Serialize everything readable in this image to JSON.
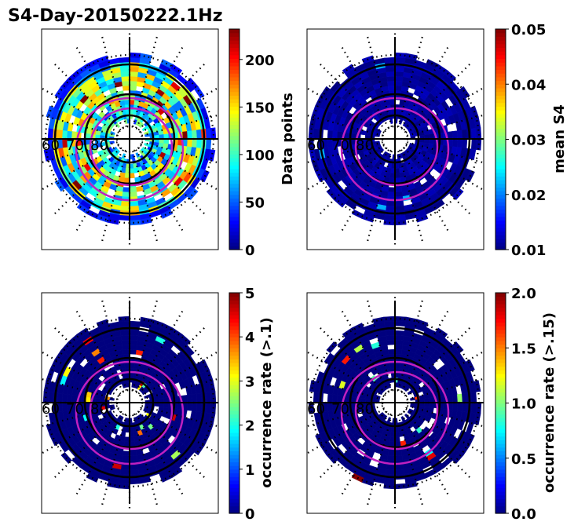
{
  "chart_data": {
    "type": "heatmap",
    "title": "S4-Day-20150222.1Hz",
    "projection": "polar (magnetic latitude / local time)",
    "latitude_labels": [
      "60",
      "70",
      "80"
    ],
    "panels": [
      {
        "name": "data-points",
        "colorbar_label": "Data points",
        "vmin": 0,
        "vmax": 232,
        "ticks": [
          "0",
          "50",
          "100",
          "150",
          "200"
        ],
        "tick_values": [
          0,
          50,
          100,
          150,
          200
        ],
        "pattern": "dense"
      },
      {
        "name": "mean-s4",
        "colorbar_label": "mean S4",
        "vmin": 0.01,
        "vmax": 0.05,
        "ticks": [
          "0.01",
          "0.02",
          "0.03",
          "0.04",
          "0.05"
        ],
        "tick_values": [
          0.01,
          0.02,
          0.03,
          0.04,
          0.05
        ],
        "pattern": "low"
      },
      {
        "name": "occurrence-rate-01",
        "colorbar_label": "occurrence rate (>.1)",
        "vmin": 0,
        "vmax": 5,
        "ticks": [
          "0",
          "1",
          "2",
          "3",
          "4",
          "5"
        ],
        "tick_values": [
          0,
          1,
          2,
          3,
          4,
          5
        ],
        "pattern": "sparse"
      },
      {
        "name": "occurrence-rate-015",
        "colorbar_label": "occurrence rate (>.15)",
        "vmin": 0,
        "vmax": 2,
        "ticks": [
          "0.0",
          "0.5",
          "1.0",
          "1.5",
          "2.0"
        ],
        "tick_values": [
          0,
          0.5,
          1,
          1.5,
          2
        ],
        "pattern": "sparse"
      }
    ],
    "colormap": "jet"
  }
}
